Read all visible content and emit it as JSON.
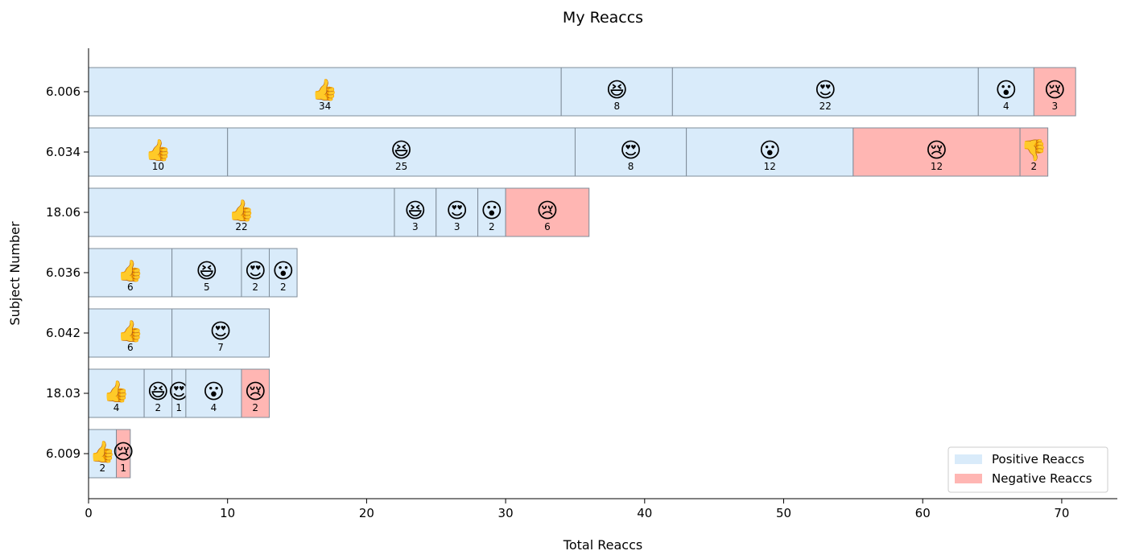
{
  "chart_data": {
    "type": "bar",
    "orientation": "horizontal",
    "stacked": true,
    "title": "My Reaccs",
    "xlabel": "Total Reaccs",
    "ylabel": "Subject Number",
    "xlim": [
      0,
      74
    ],
    "xticks": [
      0,
      10,
      20,
      30,
      40,
      50,
      60,
      70
    ],
    "grid": false,
    "legend_position": "bottom-right",
    "legend": [
      {
        "label": "Positive Reaccs",
        "kind": "positive"
      },
      {
        "label": "Negative Reaccs",
        "kind": "negative"
      }
    ],
    "colors": {
      "positive": "#d9ebfa",
      "negative": "#ffb6b3",
      "edge": "#7f8c99"
    },
    "emojis": {
      "thumbs-up": "👍",
      "laughing": "😆",
      "heart-eyes": "😍",
      "astonished": "😮",
      "crying": "😢",
      "thumbs-down": "👎"
    },
    "categories": [
      "6.006",
      "6.034",
      "18.06",
      "6.036",
      "6.042",
      "18.03",
      "6.009"
    ],
    "rows": [
      {
        "label": "6.006",
        "segments": [
          {
            "reaction": "thumbs-up",
            "value": 34,
            "kind": "positive"
          },
          {
            "reaction": "laughing",
            "value": 8,
            "kind": "positive"
          },
          {
            "reaction": "heart-eyes",
            "value": 22,
            "kind": "positive"
          },
          {
            "reaction": "astonished",
            "value": 4,
            "kind": "positive"
          },
          {
            "reaction": "crying",
            "value": 3,
            "kind": "negative"
          }
        ]
      },
      {
        "label": "6.034",
        "segments": [
          {
            "reaction": "thumbs-up",
            "value": 10,
            "kind": "positive"
          },
          {
            "reaction": "laughing",
            "value": 25,
            "kind": "positive"
          },
          {
            "reaction": "heart-eyes",
            "value": 8,
            "kind": "positive"
          },
          {
            "reaction": "astonished",
            "value": 12,
            "kind": "positive"
          },
          {
            "reaction": "crying",
            "value": 12,
            "kind": "negative"
          },
          {
            "reaction": "thumbs-down",
            "value": 2,
            "kind": "negative"
          }
        ]
      },
      {
        "label": "18.06",
        "segments": [
          {
            "reaction": "thumbs-up",
            "value": 22,
            "kind": "positive"
          },
          {
            "reaction": "laughing",
            "value": 3,
            "kind": "positive"
          },
          {
            "reaction": "heart-eyes",
            "value": 3,
            "kind": "positive"
          },
          {
            "reaction": "astonished",
            "value": 2,
            "kind": "positive"
          },
          {
            "reaction": "crying",
            "value": 6,
            "kind": "negative"
          }
        ]
      },
      {
        "label": "6.036",
        "segments": [
          {
            "reaction": "thumbs-up",
            "value": 6,
            "kind": "positive"
          },
          {
            "reaction": "laughing",
            "value": 5,
            "kind": "positive"
          },
          {
            "reaction": "heart-eyes",
            "value": 2,
            "kind": "positive"
          },
          {
            "reaction": "astonished",
            "value": 2,
            "kind": "positive"
          }
        ]
      },
      {
        "label": "6.042",
        "segments": [
          {
            "reaction": "thumbs-up",
            "value": 6,
            "kind": "positive"
          },
          {
            "reaction": "heart-eyes",
            "value": 7,
            "kind": "positive"
          }
        ]
      },
      {
        "label": "18.03",
        "segments": [
          {
            "reaction": "thumbs-up",
            "value": 4,
            "kind": "positive"
          },
          {
            "reaction": "laughing",
            "value": 2,
            "kind": "positive"
          },
          {
            "reaction": "heart-eyes",
            "value": 1,
            "kind": "positive"
          },
          {
            "reaction": "astonished",
            "value": 4,
            "kind": "positive"
          },
          {
            "reaction": "crying",
            "value": 2,
            "kind": "negative"
          }
        ]
      },
      {
        "label": "6.009",
        "segments": [
          {
            "reaction": "thumbs-up",
            "value": 2,
            "kind": "positive"
          },
          {
            "reaction": "crying",
            "value": 1,
            "kind": "negative"
          }
        ]
      }
    ]
  }
}
